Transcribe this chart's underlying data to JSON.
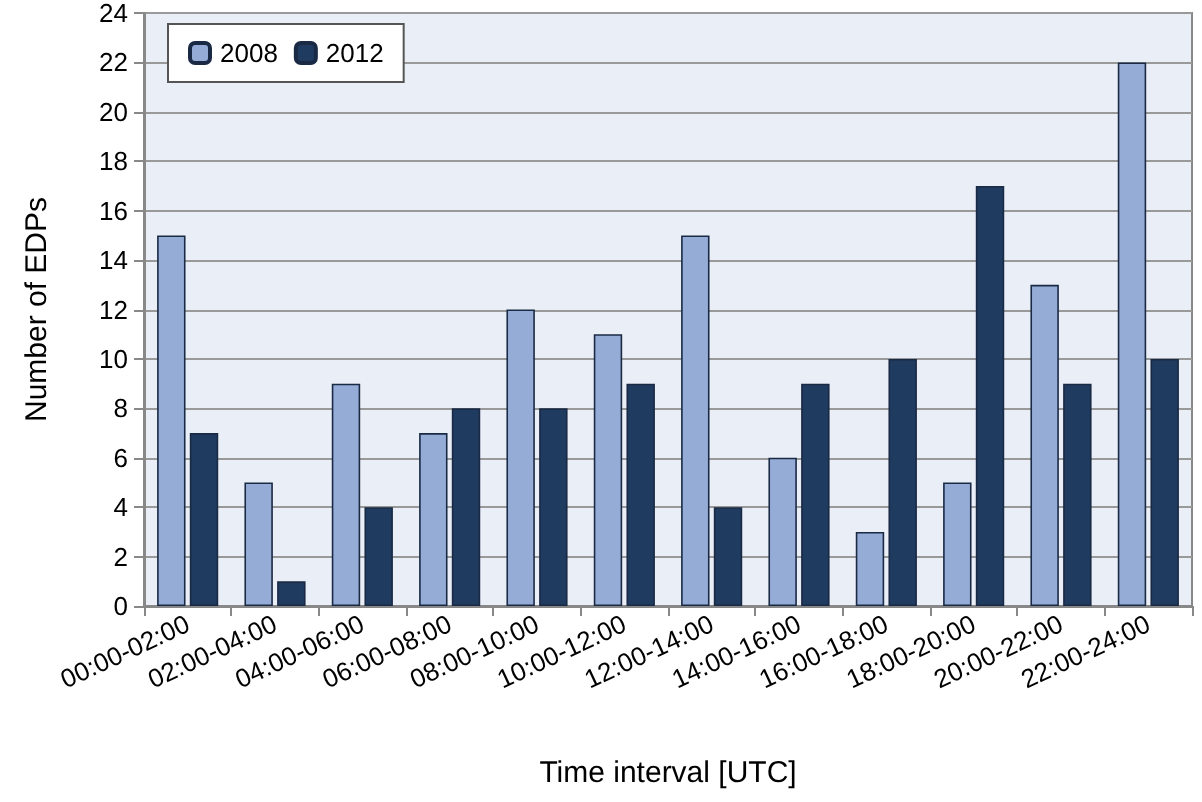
{
  "chart_data": {
    "type": "bar",
    "xlabel": "Time interval [UTC]",
    "ylabel": "Number of EDPs",
    "categories": [
      "00:00-02:00",
      "02:00-04:00",
      "04:00-06:00",
      "06:00-08:00",
      "08:00-10:00",
      "10:00-12:00",
      "12:00-14:00",
      "14:00-16:00",
      "16:00-18:00",
      "18:00-20:00",
      "20:00-22:00",
      "22:00-24:00"
    ],
    "series": [
      {
        "name": "2008",
        "color": "#95acd6",
        "values": [
          15,
          5,
          9,
          7,
          12,
          11,
          15,
          6,
          3,
          5,
          13,
          22
        ]
      },
      {
        "name": "2012",
        "color": "#1f3b60",
        "values": [
          7,
          1,
          4,
          8,
          8,
          9,
          4,
          9,
          10,
          17,
          9,
          10
        ]
      }
    ],
    "ylim": [
      0,
      24
    ],
    "yticks": [
      0,
      2,
      4,
      6,
      8,
      10,
      12,
      14,
      16,
      18,
      20,
      22,
      24
    ],
    "grid": "y",
    "legend": "top left"
  }
}
